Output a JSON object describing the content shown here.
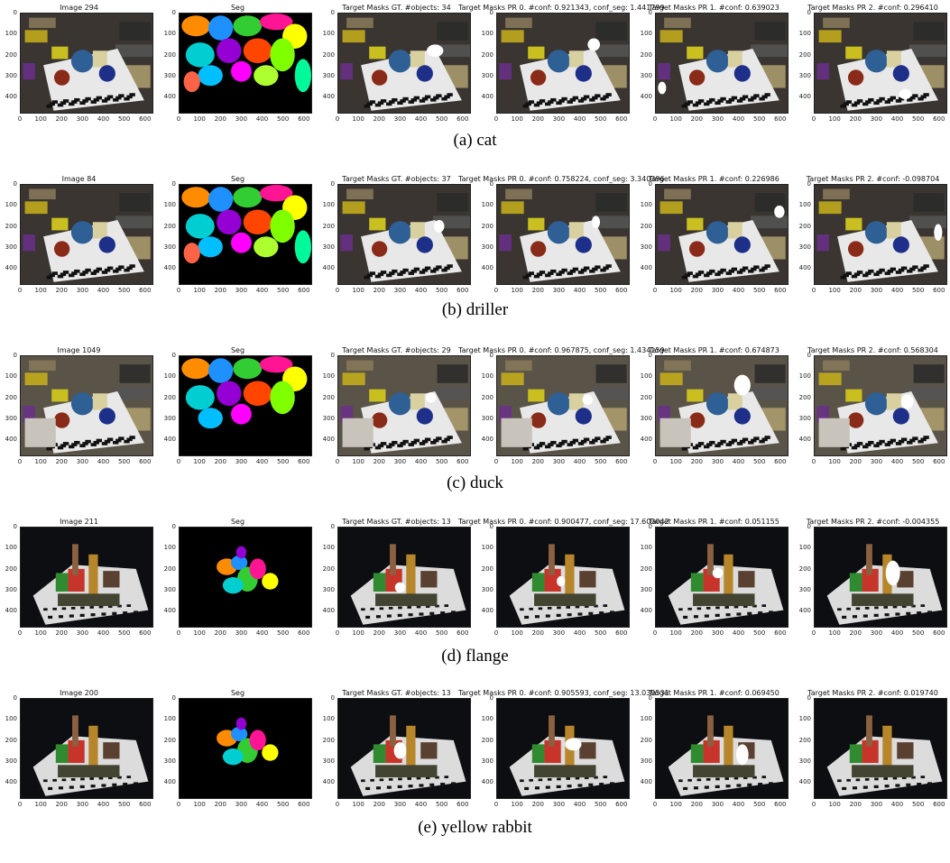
{
  "rows": [
    {
      "caption": "(a) cat",
      "titles": [
        "Image 294",
        "Seg",
        "Target Masks GT. #objects: 34",
        "Target Masks PR 0. #conf: 0.921343, conf_seg: 1.441799",
        "Target Masks PR 1. #conf: 0.639023",
        "Target Masks PR 2. #conf: 0.296410"
      ],
      "scene": "tabletop"
    },
    {
      "caption": "(b) driller",
      "titles": [
        "Image 84",
        "Seg",
        "Target Masks GT. #objects: 37",
        "Target Masks PR 0. #conf: 0.758224, conf_seg: 3.340396",
        "Target Masks PR 1. #conf: 0.226986",
        "Target Masks PR 2. #conf: -0.098704"
      ],
      "scene": "tabletop"
    },
    {
      "caption": "(c) duck",
      "titles": [
        "Image 1049",
        "Seg",
        "Target Masks GT. #objects: 29",
        "Target Masks PR 0. #conf: 0.967875, conf_seg: 1.434159",
        "Target Masks PR 1. #conf: 0.674873",
        "Target Masks PR 2. #conf: 0.568304"
      ],
      "scene": "tabletop-bright"
    },
    {
      "caption": "(d) flange",
      "titles": [
        "Image 211",
        "Seg",
        "Target Masks GT. #objects: 13",
        "Target Masks PR 0. #conf: 0.900477, conf_seg: 17.603042",
        "Target Masks PR 1. #conf: 0.051155",
        "Target Masks PR 2. #conf: -0.004355"
      ],
      "scene": "dark"
    },
    {
      "caption": "(e) yellow rabbit",
      "titles": [
        "Image 200",
        "Seg",
        "Target Masks GT. #objects: 13",
        "Target Masks PR 0. #conf: 0.905593, conf_seg: 13.039531",
        "Target Masks PR 1. #conf: 0.069450",
        "Target Masks PR 2. #conf: 0.019740"
      ],
      "scene": "dark"
    }
  ],
  "axes": {
    "xticks": [
      "0",
      "100",
      "200",
      "300",
      "400",
      "500",
      "600"
    ],
    "yticks": [
      "0",
      "100",
      "200",
      "300",
      "400"
    ]
  }
}
